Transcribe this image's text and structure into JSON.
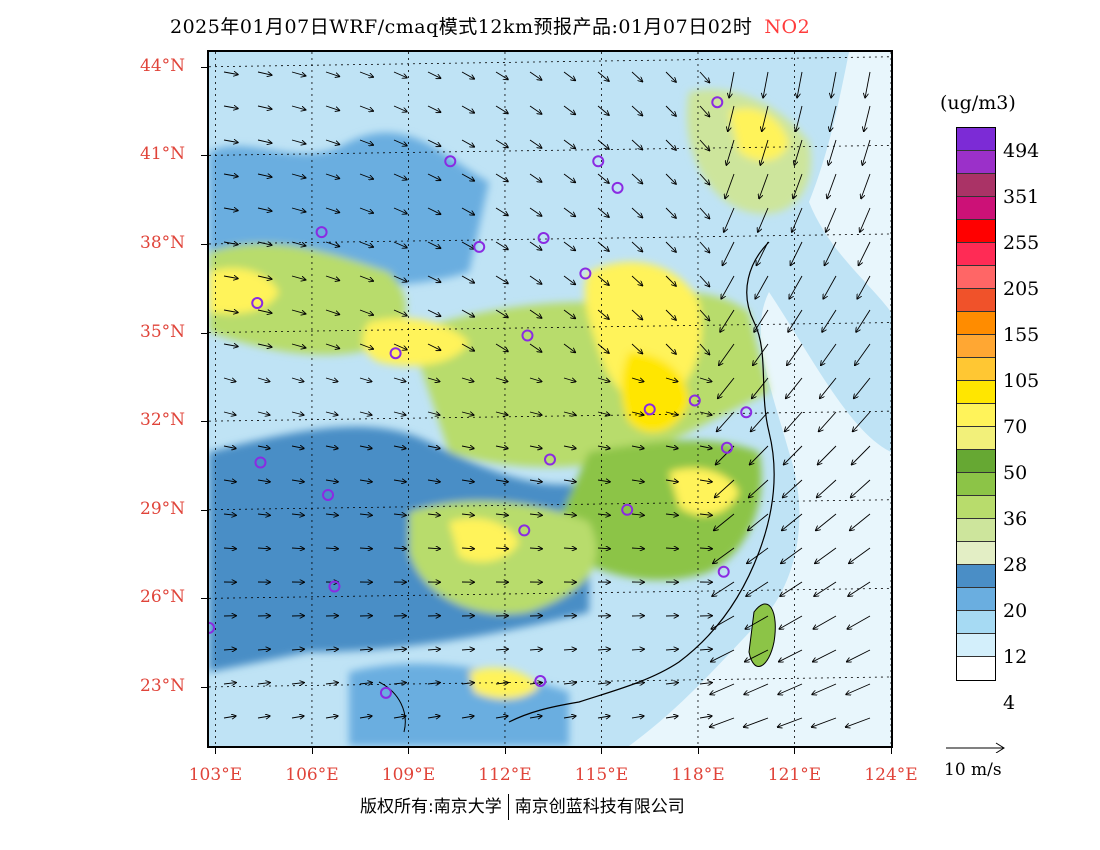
{
  "title": {
    "main": "2025年01月07日WRF/cmaq模式12km预报产品:01月07日02时",
    "pollutant": "NO2"
  },
  "axes": {
    "lat_labels": [
      "44°N",
      "41°N",
      "38°N",
      "35°N",
      "32°N",
      "29°N",
      "26°N",
      "23°N"
    ],
    "lon_labels": [
      "103°E",
      "106°E",
      "109°E",
      "112°E",
      "115°E",
      "118°E",
      "121°E",
      "124°E"
    ],
    "lat_range": [
      21,
      44.5
    ],
    "lon_range": [
      102.8,
      124
    ]
  },
  "legend": {
    "unit": "(ug/m3)",
    "colors": [
      "#7c2bd6",
      "#9b30c9",
      "#aa3366",
      "#cc1177",
      "#ff0000",
      "#ff2b55",
      "#ff6666",
      "#f0522a",
      "#ff8c00",
      "#ffa733",
      "#ffc733",
      "#ffe600",
      "#fff35a",
      "#f2f07a",
      "#66a833",
      "#8cc447",
      "#b8dc6c",
      "#cde59c",
      "#e3eec5",
      "#4a8ec6",
      "#6aaee0",
      "#a6daf3",
      "#d3effb",
      "#ffffff"
    ],
    "labels": [
      "494",
      "351",
      "255",
      "205",
      "155",
      "105",
      "70",
      "50",
      "36",
      "28",
      "20",
      "12",
      "4"
    ]
  },
  "vector_key": {
    "label": "10 m/s"
  },
  "footer": {
    "left": "版权所有:南京大学",
    "right": "南京创蓝科技有限公司"
  },
  "stations": [
    {
      "lon": 118.6,
      "lat": 42.8
    },
    {
      "lon": 110.3,
      "lat": 40.8
    },
    {
      "lon": 114.9,
      "lat": 40.8
    },
    {
      "lon": 115.5,
      "lat": 39.9
    },
    {
      "lon": 106.3,
      "lat": 38.4
    },
    {
      "lon": 111.2,
      "lat": 37.9
    },
    {
      "lon": 113.2,
      "lat": 38.2
    },
    {
      "lon": 114.5,
      "lat": 37.0
    },
    {
      "lon": 104.3,
      "lat": 36.0
    },
    {
      "lon": 112.7,
      "lat": 34.9
    },
    {
      "lon": 108.6,
      "lat": 34.3
    },
    {
      "lon": 116.5,
      "lat": 32.4
    },
    {
      "lon": 117.9,
      "lat": 32.7
    },
    {
      "lon": 119.5,
      "lat": 32.3
    },
    {
      "lon": 118.9,
      "lat": 31.1
    },
    {
      "lon": 113.4,
      "lat": 30.7
    },
    {
      "lon": 104.4,
      "lat": 30.6
    },
    {
      "lon": 106.5,
      "lat": 29.5
    },
    {
      "lon": 115.8,
      "lat": 29.0
    },
    {
      "lon": 112.6,
      "lat": 28.3
    },
    {
      "lon": 118.8,
      "lat": 26.9
    },
    {
      "lon": 106.7,
      "lat": 26.4
    },
    {
      "lon": 102.8,
      "lat": 25.0
    },
    {
      "lon": 108.3,
      "lat": 22.8
    },
    {
      "lon": 113.1,
      "lat": 23.2
    }
  ]
}
